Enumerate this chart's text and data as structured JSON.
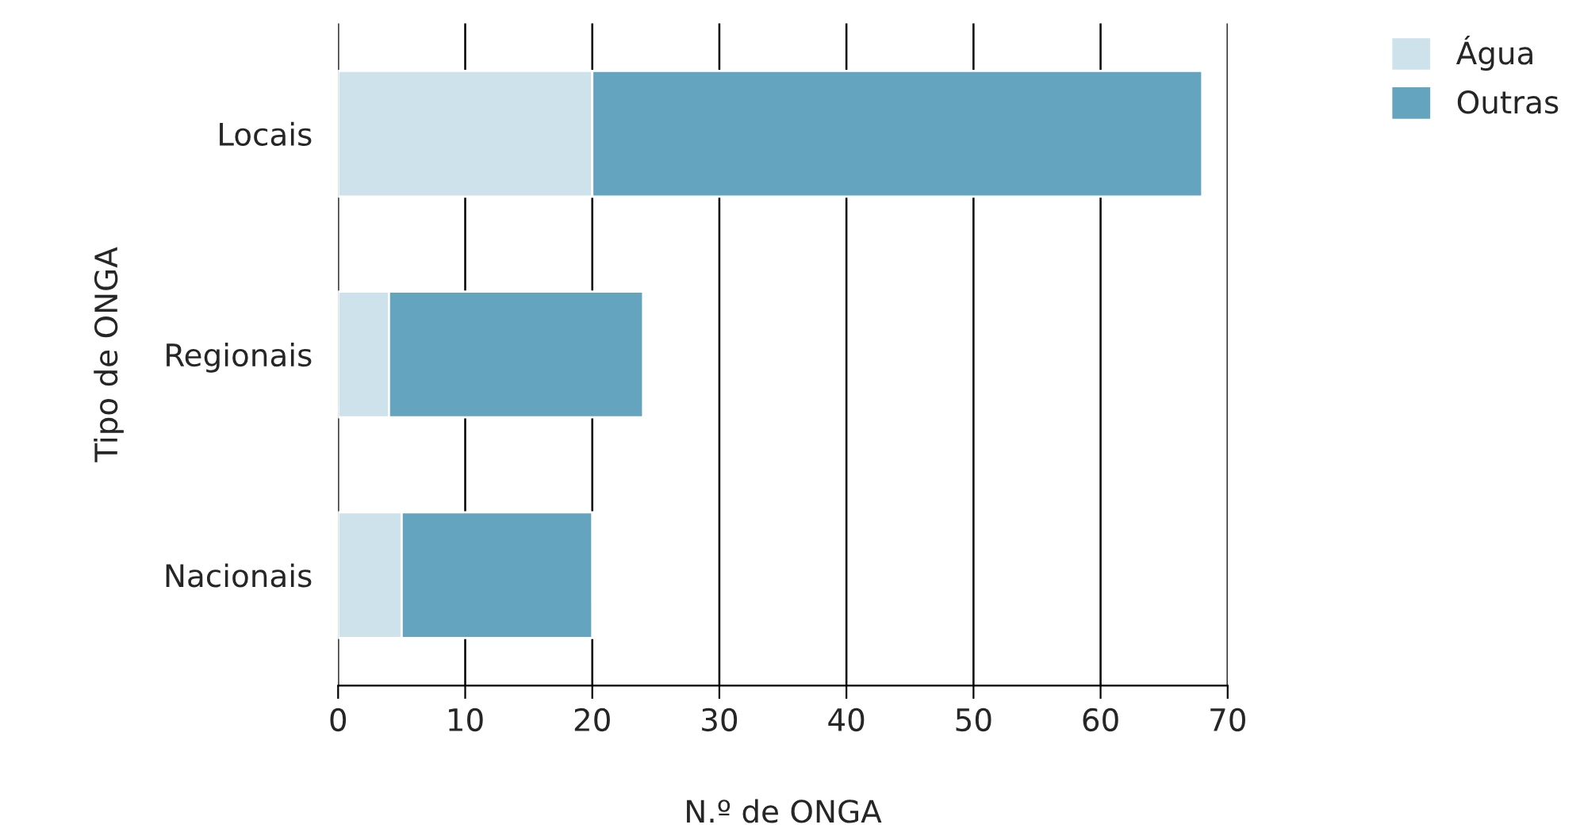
{
  "chart_data": {
    "type": "bar",
    "orientation": "horizontal",
    "stacked": true,
    "categories": [
      "Locais",
      "Regionais",
      "Nacionais"
    ],
    "series": [
      {
        "name": "Água",
        "color": "#cde2ea",
        "values": [
          20,
          4,
          5
        ]
      },
      {
        "name": "Outras",
        "color": "#64a4bf",
        "values": [
          48,
          20,
          15
        ]
      }
    ],
    "xlabel": "N.º de ONGA",
    "ylabel": "Tipo de ONGA",
    "xlim": [
      0,
      70
    ],
    "xticks": [
      0,
      10,
      20,
      30,
      40,
      50,
      60,
      70
    ],
    "grid": "x",
    "legend": "top right"
  }
}
